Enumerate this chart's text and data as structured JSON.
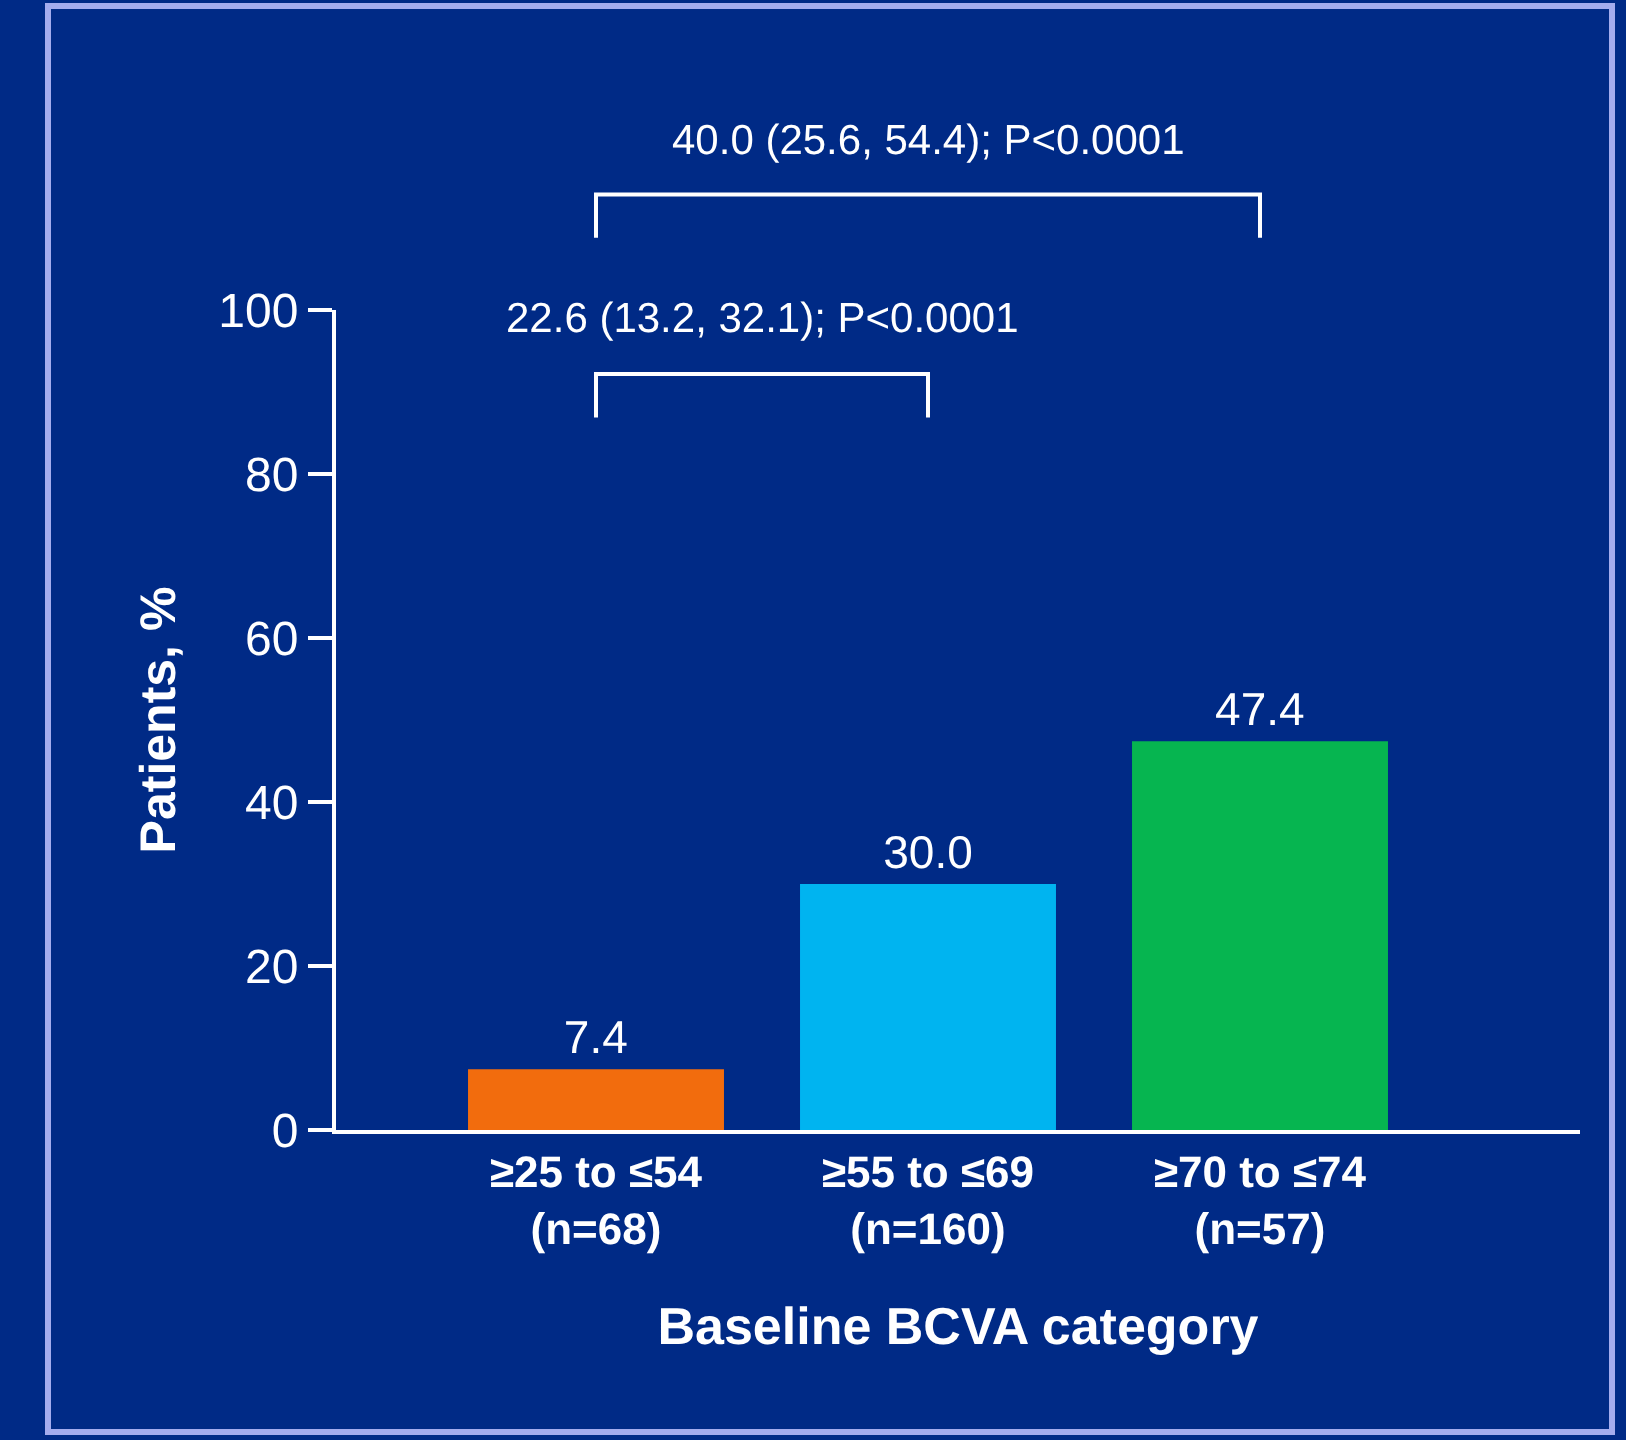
{
  "chart_data": {
    "type": "bar",
    "categories": [
      "≥25 to ≤54\n(n=68)",
      "≥55 to ≤69\n(n=160)",
      "≥70 to ≤74\n(n=57)"
    ],
    "values": [
      7.4,
      30.0,
      47.4
    ],
    "colors": [
      "#f26c0d",
      "#00b4f0",
      "#06b550"
    ],
    "value_labels": [
      "7.4",
      "30.0",
      "47.4"
    ],
    "ylim": [
      0,
      100
    ],
    "yticks": [
      0,
      20,
      40,
      60,
      80,
      100
    ],
    "xlabel": "Baseline BCVA category",
    "ylabel": "Patients, %",
    "annotations": [
      "22.6 (13.2, 32.1); P<0.0001",
      "40.0 (25.6, 54.4); P<0.0001"
    ],
    "grid": false
  }
}
